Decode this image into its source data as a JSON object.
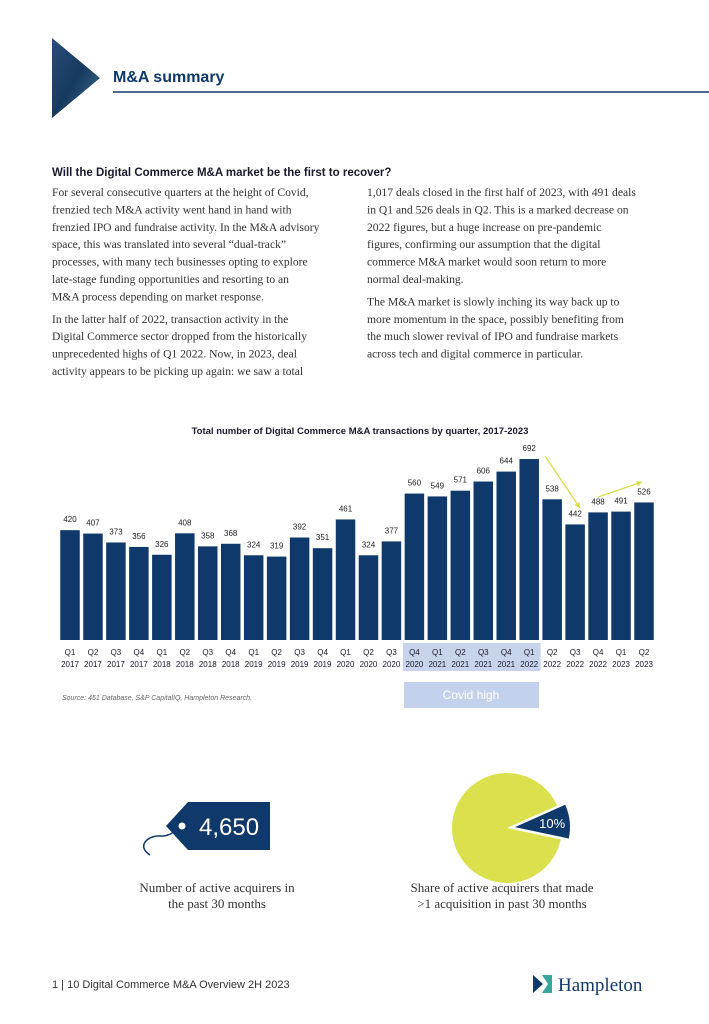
{
  "header": {
    "title": "M&A summary"
  },
  "article": {
    "heading": "Will the Digital Commerce M&A market be the first to recover?",
    "left_paragraphs": [
      [
        "For several consecutive quarters at the height of Covid,",
        "frenzied tech M&A activity went hand in hand with",
        "frenzied IPO and fundraise activity. In the M&A advisory",
        "space, this was translated into several “dual-track”",
        "processes, with many tech businesses opting to explore",
        "late-stage funding opportunities and resorting to an",
        "M&A process depending on market response."
      ],
      [
        "In the latter half of 2022, transaction activity in the",
        "Digital Commerce sector dropped from the historically",
        "unprecedented highs of Q1 2022.  Now, in 2023, deal",
        "activity appears to be picking up again: we saw a total"
      ]
    ],
    "right_paragraphs": [
      [
        "1,017 deals closed in the first half of 2023, with 491 deals",
        "in Q1 and 526 deals in Q2. This is a marked decrease on",
        "2022 figures, but a huge increase on pre-pandemic",
        "figures, confirming our assumption that the digital",
        "commerce M&A market would soon return to more",
        "normal deal-making."
      ],
      [
        "The M&A market is slowly inching its way back up to",
        "more momentum in the space, possibly benefiting from",
        "the much slower revival of IPO and fundraise markets",
        "across tech and digital commerce in particular."
      ]
    ]
  },
  "chart_data": [
    {
      "type": "bar",
      "title": "Total number of Digital Commerce M&A transactions by quarter, 2017-2023",
      "categories": [
        [
          "Q1",
          "2017"
        ],
        [
          "Q2",
          "2017"
        ],
        [
          "Q3",
          "2017"
        ],
        [
          "Q4",
          "2017"
        ],
        [
          "Q1",
          "2018"
        ],
        [
          "Q2",
          "2018"
        ],
        [
          "Q3",
          "2018"
        ],
        [
          "Q4",
          "2018"
        ],
        [
          "Q1",
          "2019"
        ],
        [
          "Q2",
          "2019"
        ],
        [
          "Q3",
          "2019"
        ],
        [
          "Q4",
          "2019"
        ],
        [
          "Q1",
          "2020"
        ],
        [
          "Q2",
          "2020"
        ],
        [
          "Q3",
          "2020"
        ],
        [
          "Q4",
          "2020"
        ],
        [
          "Q1",
          "2021"
        ],
        [
          "Q2",
          "2021"
        ],
        [
          "Q3",
          "2021"
        ],
        [
          "Q4",
          "2021"
        ],
        [
          "Q1",
          "2022"
        ],
        [
          "Q2",
          "2022"
        ],
        [
          "Q3",
          "2022"
        ],
        [
          "Q4",
          "2022"
        ],
        [
          "Q1",
          "2023"
        ],
        [
          "Q2",
          "2023"
        ]
      ],
      "values": [
        420,
        407,
        373,
        356,
        326,
        408,
        358,
        368,
        324,
        319,
        392,
        351,
        461,
        324,
        377,
        560,
        549,
        571,
        606,
        644,
        692,
        538,
        442,
        488,
        491,
        526
      ],
      "color": "#10396b",
      "annotation": "Covid high",
      "source": "Source: 451 Database, S&P CapitalIQ, Hampleton Research."
    },
    {
      "type": "pie",
      "values": [
        10
      ],
      "value_labels": [
        "10%"
      ],
      "color": "#10396b",
      "background_color": "#dbe14c",
      "caption": [
        "Share of active acquirers that made",
        ">1 acquisition in past 30 months"
      ]
    }
  ],
  "stat": {
    "value": "4,650",
    "caption": [
      "Number of active acquirers in",
      "the past 30 months"
    ]
  },
  "footer": {
    "text": "1 | 10 Digital Commerce M&A Overview 2H 2023",
    "logo": "Hampleton"
  }
}
